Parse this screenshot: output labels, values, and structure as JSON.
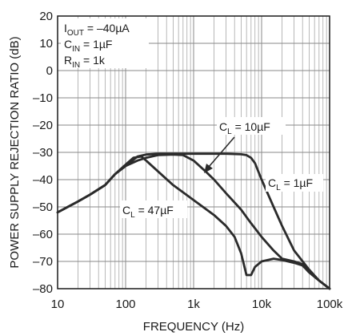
{
  "chart_data": {
    "type": "line",
    "xlabel": "FREQUENCY (Hz)",
    "ylabel": "POWER SUPPLY REJECTION RATIO (dB)",
    "xscale": "log",
    "xlim": [
      10,
      100000
    ],
    "ylim": [
      -80,
      20
    ],
    "grid": true,
    "x_ticks": [
      10,
      100,
      1000,
      10000,
      100000
    ],
    "x_tick_labels": [
      "10",
      "100",
      "1k",
      "10k",
      "100k"
    ],
    "y_ticks": [
      20,
      10,
      0,
      -10,
      -20,
      -30,
      -40,
      -50,
      -60,
      -70,
      -80
    ],
    "y_tick_labels": [
      "20",
      "10",
      "0",
      "–10",
      "–20",
      "–30",
      "–40",
      "–50",
      "–60",
      "–70",
      "–80"
    ],
    "conditions": {
      "line1_main": "I",
      "line1_sub": "OUT",
      "line1_rest": " = –40µA",
      "line2_main": "C",
      "line2_sub": "IN",
      "line2_rest": " = 1µF",
      "line3_main": "R",
      "line3_sub": "IN",
      "line3_rest": " = 1k"
    },
    "series_labels": {
      "c10": {
        "main": "C",
        "sub": "L",
        "rest": " = 10µF"
      },
      "c1": {
        "main": "C",
        "sub": "L",
        "rest": " = 1µF"
      },
      "c47": {
        "main": "C",
        "sub": "L",
        "rest": " = 47µF"
      }
    },
    "series": [
      {
        "key": "c1",
        "x": [
          10,
          20,
          30,
          50,
          70,
          100,
          150,
          200,
          300,
          500,
          1000,
          2000,
          3000,
          5000,
          6000,
          7000,
          8000,
          10000,
          15000,
          20000,
          30000,
          50000,
          70000,
          100000
        ],
        "y": [
          -52,
          -48,
          -45.5,
          -42,
          -38,
          -35,
          -31.5,
          -30.8,
          -30.5,
          -30.5,
          -30.5,
          -30.5,
          -30.5,
          -30.7,
          -31,
          -32,
          -34,
          -40,
          -50,
          -57,
          -66,
          -73,
          -77,
          -80
        ]
      },
      {
        "key": "c10",
        "x": [
          10,
          20,
          30,
          50,
          70,
          100,
          150,
          200,
          300,
          500,
          700,
          1000,
          1500,
          2000,
          3000,
          5000,
          7000,
          10000,
          15000,
          20000,
          30000,
          40000,
          50000,
          70000,
          100000
        ],
        "y": [
          -52,
          -48,
          -45.5,
          -42,
          -38,
          -35,
          -33,
          -32,
          -31,
          -30.8,
          -31,
          -33,
          -37,
          -40,
          -45,
          -51,
          -56,
          -61,
          -66,
          -69,
          -70,
          -71,
          -74,
          -77,
          -80
        ]
      },
      {
        "key": "c47",
        "x": [
          10,
          20,
          30,
          50,
          70,
          100,
          130,
          170,
          200,
          300,
          500,
          1000,
          2000,
          3000,
          4000,
          5000,
          6000,
          7000,
          8000,
          10000,
          15000,
          20000,
          30000,
          40000,
          50000,
          70000,
          100000
        ],
        "y": [
          -52,
          -48,
          -45.5,
          -42,
          -38,
          -34.5,
          -32,
          -31.5,
          -33,
          -37,
          -42,
          -47.5,
          -53,
          -57,
          -61,
          -67,
          -75,
          -75,
          -72,
          -70,
          -69,
          -69.5,
          -70.5,
          -71.5,
          -74,
          -77,
          -80
        ]
      }
    ]
  }
}
